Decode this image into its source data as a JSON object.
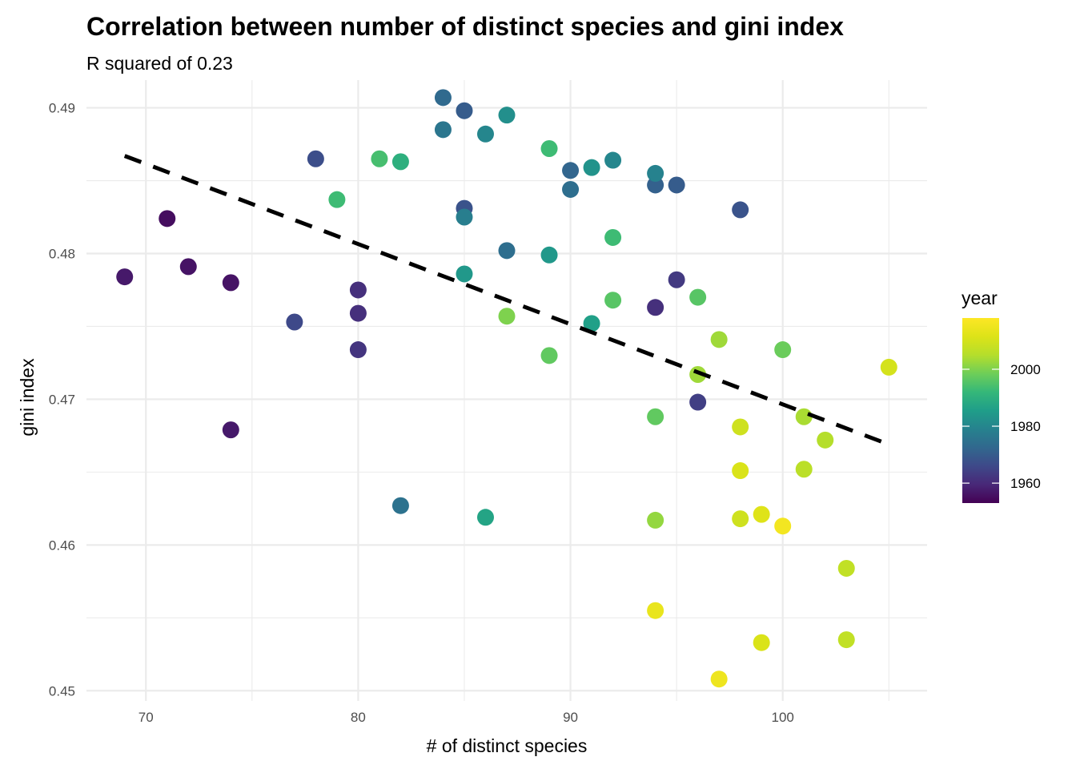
{
  "chart_data": {
    "type": "scatter",
    "title": "Correlation between number of distinct species and gini index",
    "subtitle": "R squared of 0.23",
    "xlabel": "# of distinct species",
    "ylabel": "gini index",
    "xlim": [
      67.2,
      106.8
    ],
    "ylim": [
      0.4493,
      0.4919
    ],
    "x_ticks": [
      70,
      80,
      90,
      100
    ],
    "x_tick_labels": [
      "70",
      "80",
      "90",
      "100"
    ],
    "x_minor_ticks": [
      75,
      85,
      95,
      105
    ],
    "y_ticks": [
      0.45,
      0.46,
      0.47,
      0.48,
      0.49
    ],
    "y_tick_labels": [
      "0.45",
      "0.46",
      "0.47",
      "0.48",
      "0.49"
    ],
    "y_minor_ticks": [
      0.455,
      0.465,
      0.475,
      0.485
    ],
    "grid": true,
    "legend": {
      "title": "year",
      "type": "colorbar",
      "palette": "viridis",
      "range": [
        1953,
        2018
      ],
      "breaks": [
        1960,
        1980,
        2000
      ],
      "break_labels": [
        "1960",
        "1980",
        "2000"
      ],
      "placement": "right"
    },
    "trend_line": {
      "style": "dashed",
      "color": "#000000",
      "method": "linear regression",
      "x": [
        69,
        105
      ],
      "y": [
        0.4867,
        0.4669
      ]
    },
    "points": [
      {
        "x": 69,
        "y": 0.4784,
        "year": 1957
      },
      {
        "x": 71,
        "y": 0.4824,
        "year": 1955
      },
      {
        "x": 72,
        "y": 0.4791,
        "year": 1956
      },
      {
        "x": 74,
        "y": 0.478,
        "year": 1956
      },
      {
        "x": 74,
        "y": 0.4679,
        "year": 1957
      },
      {
        "x": 77,
        "y": 0.4753,
        "year": 1966
      },
      {
        "x": 78,
        "y": 0.4865,
        "year": 1967
      },
      {
        "x": 79,
        "y": 0.4837,
        "year": 1993
      },
      {
        "x": 80,
        "y": 0.4775,
        "year": 1961
      },
      {
        "x": 80,
        "y": 0.4759,
        "year": 1961
      },
      {
        "x": 80,
        "y": 0.4734,
        "year": 1962
      },
      {
        "x": 81,
        "y": 0.4865,
        "year": 1994
      },
      {
        "x": 82,
        "y": 0.4863,
        "year": 1990
      },
      {
        "x": 82,
        "y": 0.4627,
        "year": 1975
      },
      {
        "x": 84,
        "y": 0.4907,
        "year": 1973
      },
      {
        "x": 84,
        "y": 0.4885,
        "year": 1976
      },
      {
        "x": 85,
        "y": 0.4898,
        "year": 1970
      },
      {
        "x": 85,
        "y": 0.4831,
        "year": 1968
      },
      {
        "x": 85,
        "y": 0.4825,
        "year": 1978
      },
      {
        "x": 85,
        "y": 0.4786,
        "year": 1984
      },
      {
        "x": 86,
        "y": 0.4882,
        "year": 1980
      },
      {
        "x": 86,
        "y": 0.4619,
        "year": 1987
      },
      {
        "x": 87,
        "y": 0.4895,
        "year": 1982
      },
      {
        "x": 87,
        "y": 0.4802,
        "year": 1974
      },
      {
        "x": 87,
        "y": 0.4757,
        "year": 2000
      },
      {
        "x": 89,
        "y": 0.4872,
        "year": 1993
      },
      {
        "x": 89,
        "y": 0.4799,
        "year": 1984
      },
      {
        "x": 89,
        "y": 0.473,
        "year": 1997
      },
      {
        "x": 90,
        "y": 0.4857,
        "year": 1972
      },
      {
        "x": 90,
        "y": 0.4844,
        "year": 1974
      },
      {
        "x": 91,
        "y": 0.4859,
        "year": 1983
      },
      {
        "x": 91,
        "y": 0.4752,
        "year": 1986
      },
      {
        "x": 92,
        "y": 0.4864,
        "year": 1980
      },
      {
        "x": 92,
        "y": 0.4811,
        "year": 1993
      },
      {
        "x": 92,
        "y": 0.4768,
        "year": 1996
      },
      {
        "x": 94,
        "y": 0.4847,
        "year": 1971
      },
      {
        "x": 94,
        "y": 0.4855,
        "year": 1979
      },
      {
        "x": 94,
        "y": 0.4763,
        "year": 1961
      },
      {
        "x": 94,
        "y": 0.4688,
        "year": 1997
      },
      {
        "x": 94,
        "y": 0.4617,
        "year": 2002
      },
      {
        "x": 94,
        "y": 0.4555,
        "year": 2014
      },
      {
        "x": 95,
        "y": 0.4847,
        "year": 1970
      },
      {
        "x": 95,
        "y": 0.4782,
        "year": 1963
      },
      {
        "x": 96,
        "y": 0.477,
        "year": 1996
      },
      {
        "x": 96,
        "y": 0.4717,
        "year": 2003
      },
      {
        "x": 96,
        "y": 0.4698,
        "year": 1964
      },
      {
        "x": 97,
        "y": 0.4741,
        "year": 2003
      },
      {
        "x": 97,
        "y": 0.4508,
        "year": 2015
      },
      {
        "x": 98,
        "y": 0.483,
        "year": 1968
      },
      {
        "x": 98,
        "y": 0.4681,
        "year": 2009
      },
      {
        "x": 98,
        "y": 0.4651,
        "year": 2011
      },
      {
        "x": 98,
        "y": 0.4618,
        "year": 2009
      },
      {
        "x": 99,
        "y": 0.4621,
        "year": 2012
      },
      {
        "x": 99,
        "y": 0.4533,
        "year": 2011
      },
      {
        "x": 100,
        "y": 0.4734,
        "year": 1998
      },
      {
        "x": 100,
        "y": 0.4613,
        "year": 2016
      },
      {
        "x": 101,
        "y": 0.4688,
        "year": 2004
      },
      {
        "x": 101,
        "y": 0.4652,
        "year": 2006
      },
      {
        "x": 102,
        "y": 0.4672,
        "year": 2005
      },
      {
        "x": 103,
        "y": 0.4584,
        "year": 2007
      },
      {
        "x": 103,
        "y": 0.4535,
        "year": 2007
      },
      {
        "x": 105,
        "y": 0.4722,
        "year": 2010
      }
    ]
  }
}
